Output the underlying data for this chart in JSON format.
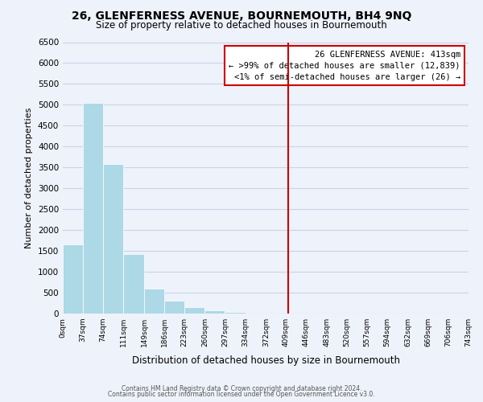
{
  "title": "26, GLENFERNESS AVENUE, BOURNEMOUTH, BH4 9NQ",
  "subtitle": "Size of property relative to detached houses in Bournemouth",
  "xlabel": "Distribution of detached houses by size in Bournemouth",
  "ylabel": "Number of detached properties",
  "bar_edges": [
    0,
    37,
    74,
    111,
    149,
    186,
    223,
    260,
    297,
    334,
    372,
    409,
    446,
    483,
    520,
    557,
    594,
    632,
    669,
    706,
    743
  ],
  "bar_heights": [
    1650,
    5050,
    3580,
    1420,
    590,
    305,
    155,
    75,
    30,
    0,
    0,
    0,
    0,
    0,
    0,
    0,
    0,
    0,
    0,
    0
  ],
  "bar_color": "#add8e6",
  "grid_color": "#c8d4e8",
  "background_color": "#eef2fa",
  "vline_x": 413,
  "vline_color": "#cc0000",
  "ylim": [
    0,
    6500
  ],
  "yticks": [
    0,
    500,
    1000,
    1500,
    2000,
    2500,
    3000,
    3500,
    4000,
    4500,
    5000,
    5500,
    6000,
    6500
  ],
  "xtick_labels": [
    "0sqm",
    "37sqm",
    "74sqm",
    "111sqm",
    "149sqm",
    "186sqm",
    "223sqm",
    "260sqm",
    "297sqm",
    "334sqm",
    "372sqm",
    "409sqm",
    "446sqm",
    "483sqm",
    "520sqm",
    "557sqm",
    "594sqm",
    "632sqm",
    "669sqm",
    "706sqm",
    "743sqm"
  ],
  "annotation_box_title": "26 GLENFERNESS AVENUE: 413sqm",
  "annotation_line1": "← >99% of detached houses are smaller (12,839)",
  "annotation_line2": "<1% of semi-detached houses are larger (26) →",
  "footer1": "Contains HM Land Registry data © Crown copyright and database right 2024.",
  "footer2": "Contains public sector information licensed under the Open Government Licence v3.0."
}
